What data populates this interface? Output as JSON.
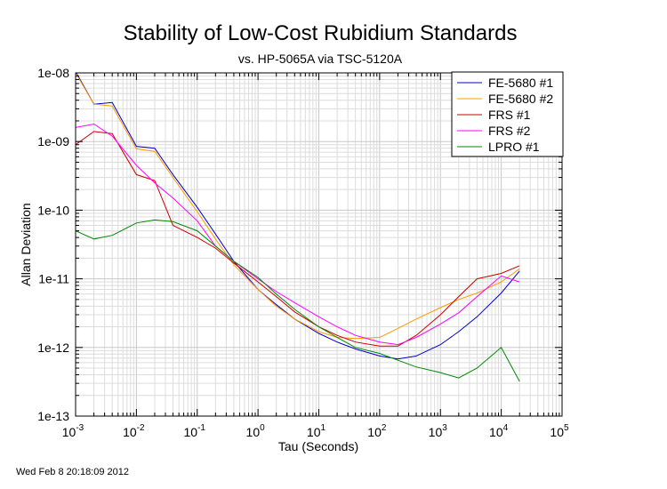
{
  "chart_data": {
    "type": "line",
    "title": "Stability of Low-Cost Rubidium Standards",
    "subtitle": "vs. HP-5065A via TSC-5120A",
    "xlabel": "Tau (Seconds)",
    "ylabel": "Allan Deviation",
    "x_scale": "log",
    "y_scale": "log",
    "xlim": [
      0.001,
      100000
    ],
    "ylim": [
      1e-13,
      1e-08
    ],
    "grid": true,
    "legend_position": "top-right",
    "x_ticks": [
      {
        "value": 0.001,
        "base": "10",
        "exp": "-3"
      },
      {
        "value": 0.01,
        "base": "10",
        "exp": "-2"
      },
      {
        "value": 0.1,
        "base": "10",
        "exp": "-1"
      },
      {
        "value": 1,
        "base": "10",
        "exp": "0"
      },
      {
        "value": 10,
        "base": "10",
        "exp": "1"
      },
      {
        "value": 100,
        "base": "10",
        "exp": "2"
      },
      {
        "value": 1000,
        "base": "10",
        "exp": "3"
      },
      {
        "value": 10000,
        "base": "10",
        "exp": "4"
      },
      {
        "value": 100000,
        "base": "10",
        "exp": "5"
      }
    ],
    "y_ticks": [
      {
        "value": 1e-08,
        "label": "1e-08"
      },
      {
        "value": 1e-09,
        "label": "1e-09"
      },
      {
        "value": 1e-10,
        "label": "1e-10"
      },
      {
        "value": 1e-11,
        "label": "1e-11"
      },
      {
        "value": 1e-12,
        "label": "1e-12"
      },
      {
        "value": 1e-13,
        "label": "1e-13"
      }
    ],
    "series": [
      {
        "name": "FE-5680 #1",
        "color": "#0000cc",
        "x": [
          0.001,
          0.002,
          0.004,
          0.01,
          0.02,
          0.04,
          0.1,
          0.2,
          0.4,
          1,
          2,
          4,
          10,
          20,
          40,
          100,
          200,
          400,
          1000,
          2000,
          4000,
          10000,
          20000
        ],
        "y": [
          1.05e-08,
          3.5e-09,
          3.7e-09,
          8.5e-10,
          8e-10,
          3.3e-10,
          1.1e-10,
          4.5e-11,
          1.8e-11,
          7e-12,
          4.2e-12,
          2.6e-12,
          1.6e-12,
          1.2e-12,
          9.5e-13,
          7.5e-13,
          6.8e-13,
          7.5e-13,
          1.1e-12,
          1.7e-12,
          2.8e-12,
          6.2e-12,
          1.3e-11
        ]
      },
      {
        "name": "FE-5680 #2",
        "color": "#ff9900",
        "x": [
          0.001,
          0.002,
          0.004,
          0.01,
          0.02,
          0.04,
          0.1,
          0.2,
          0.4,
          1,
          2,
          4,
          10,
          20,
          40,
          100,
          200,
          400,
          1000,
          2000,
          4000,
          10000,
          20000
        ],
        "y": [
          1e-08,
          3.5e-09,
          3.3e-09,
          7.8e-10,
          7.2e-10,
          3e-10,
          9.5e-11,
          3.8e-11,
          1.6e-11,
          7e-12,
          4e-12,
          2.6e-12,
          1.7e-12,
          1.4e-12,
          1.35e-12,
          1.4e-12,
          1.9e-12,
          2.6e-12,
          3.8e-12,
          5e-12,
          6.2e-12,
          9e-12,
          1.4e-11
        ]
      },
      {
        "name": "FRS #1",
        "color": "#cc0000",
        "x": [
          0.001,
          0.002,
          0.004,
          0.01,
          0.02,
          0.04,
          0.1,
          0.2,
          0.4,
          1,
          2,
          4,
          10,
          20,
          40,
          100,
          200,
          400,
          1000,
          2000,
          4000,
          10000,
          20000
        ],
        "y": [
          9e-10,
          1.4e-09,
          1.3e-09,
          3.3e-10,
          2.7e-10,
          6e-11,
          4e-11,
          2.8e-11,
          1.7e-11,
          9e-12,
          5.5e-12,
          3.3e-12,
          2e-12,
          1.5e-12,
          1.2e-12,
          1.05e-12,
          1.05e-12,
          1.5e-12,
          3e-12,
          5.5e-12,
          1e-11,
          1.2e-11,
          1.55e-11
        ]
      },
      {
        "name": "FRS #2",
        "color": "#ff00ff",
        "x": [
          0.001,
          0.002,
          0.004,
          0.01,
          0.02,
          0.04,
          0.1,
          0.2,
          0.4,
          1,
          2,
          4,
          10,
          20,
          40,
          100,
          200,
          400,
          1000,
          2000,
          4000,
          10000,
          20000
        ],
        "y": [
          1.6e-09,
          1.8e-09,
          1.2e-09,
          4.5e-10,
          2.5e-10,
          1.5e-10,
          7e-11,
          3e-11,
          1.8e-11,
          1e-11,
          6.5e-12,
          4.5e-12,
          2.8e-12,
          2e-12,
          1.5e-12,
          1.2e-12,
          1.1e-12,
          1.4e-12,
          2.2e-12,
          3.2e-12,
          5.5e-12,
          1.1e-11,
          9e-12
        ]
      },
      {
        "name": "LPRO #1",
        "color": "#008800",
        "x": [
          0.001,
          0.002,
          0.004,
          0.01,
          0.02,
          0.04,
          0.1,
          0.2,
          0.4,
          1,
          2,
          4,
          10,
          20,
          40,
          100,
          200,
          400,
          1000,
          2000,
          4000,
          10000,
          20000
        ],
        "y": [
          5e-11,
          3.8e-11,
          4.3e-11,
          6.5e-11,
          7.2e-11,
          6.8e-11,
          5e-11,
          3e-11,
          1.8e-11,
          1.05e-11,
          6e-12,
          3.6e-12,
          2e-12,
          1.4e-12,
          1e-12,
          8.2e-13,
          6.5e-13,
          5.2e-13,
          4.3e-13,
          3.6e-13,
          5e-13,
          1e-12,
          3.2e-13
        ]
      }
    ]
  },
  "timestamp": "Wed Feb  8 20:18:09 2012"
}
